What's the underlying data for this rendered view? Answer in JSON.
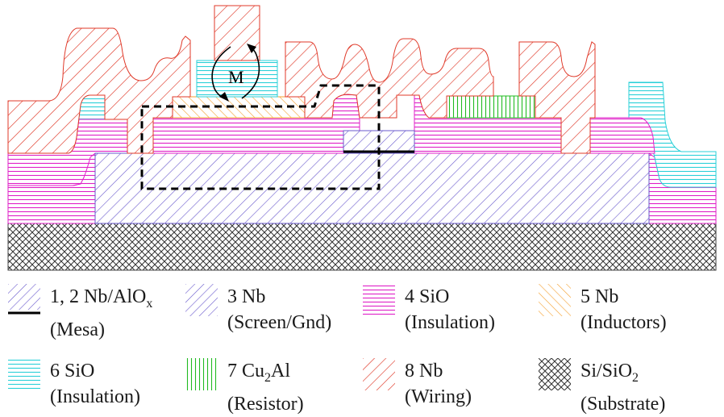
{
  "diagram": {
    "label_m": "M"
  },
  "legend": [
    {
      "key": "mesa",
      "name_pre": "1, 2 Nb/AlO",
      "name_sub": "x",
      "name_post": "",
      "desc": "(Mesa)",
      "color": "#6a5acd"
    },
    {
      "key": "screen",
      "name_pre": "3 Nb",
      "name_sub": "",
      "name_post": "",
      "desc": "(Screen/Gnd)",
      "color": "#6a5acd"
    },
    {
      "key": "sio4",
      "name_pre": "4 SiO",
      "name_sub": "",
      "name_post": "",
      "desc": "(Insulation)",
      "color": "#e020c8"
    },
    {
      "key": "inductors",
      "name_pre": "5 Nb",
      "name_sub": "",
      "name_post": "",
      "desc": "(Inductors)",
      "color": "#f5a030"
    },
    {
      "key": "sio6",
      "name_pre": "6 SiO",
      "name_sub": "",
      "name_post": "",
      "desc": "(Insulation)",
      "color": "#2ad0d8"
    },
    {
      "key": "resistor",
      "name_pre": "7 Cu",
      "name_sub": "2",
      "name_post": "Al",
      "desc": "(Resistor)",
      "color": "#22bb22"
    },
    {
      "key": "wiring",
      "name_pre": "8 Nb",
      "name_sub": "",
      "name_post": "",
      "desc": "(Wiring)",
      "color": "#e03a2a"
    },
    {
      "key": "substrate",
      "name_pre": "Si/SiO",
      "name_sub": "2",
      "name_post": "",
      "desc": "(Substrate)",
      "color": "#333333"
    }
  ]
}
